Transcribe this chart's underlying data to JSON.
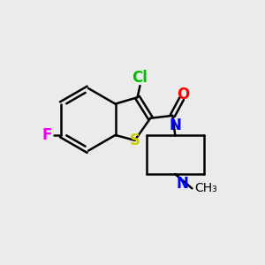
{
  "bg_color": "#ebebeb",
  "bond_color": "#000000",
  "bond_width": 1.8,
  "atom_colors": {
    "Cl": "#00bb00",
    "F": "#ee00ee",
    "S": "#cccc00",
    "O": "#ff0000",
    "N": "#0000ff"
  },
  "font_size": 12,
  "methyl_font_size": 10
}
